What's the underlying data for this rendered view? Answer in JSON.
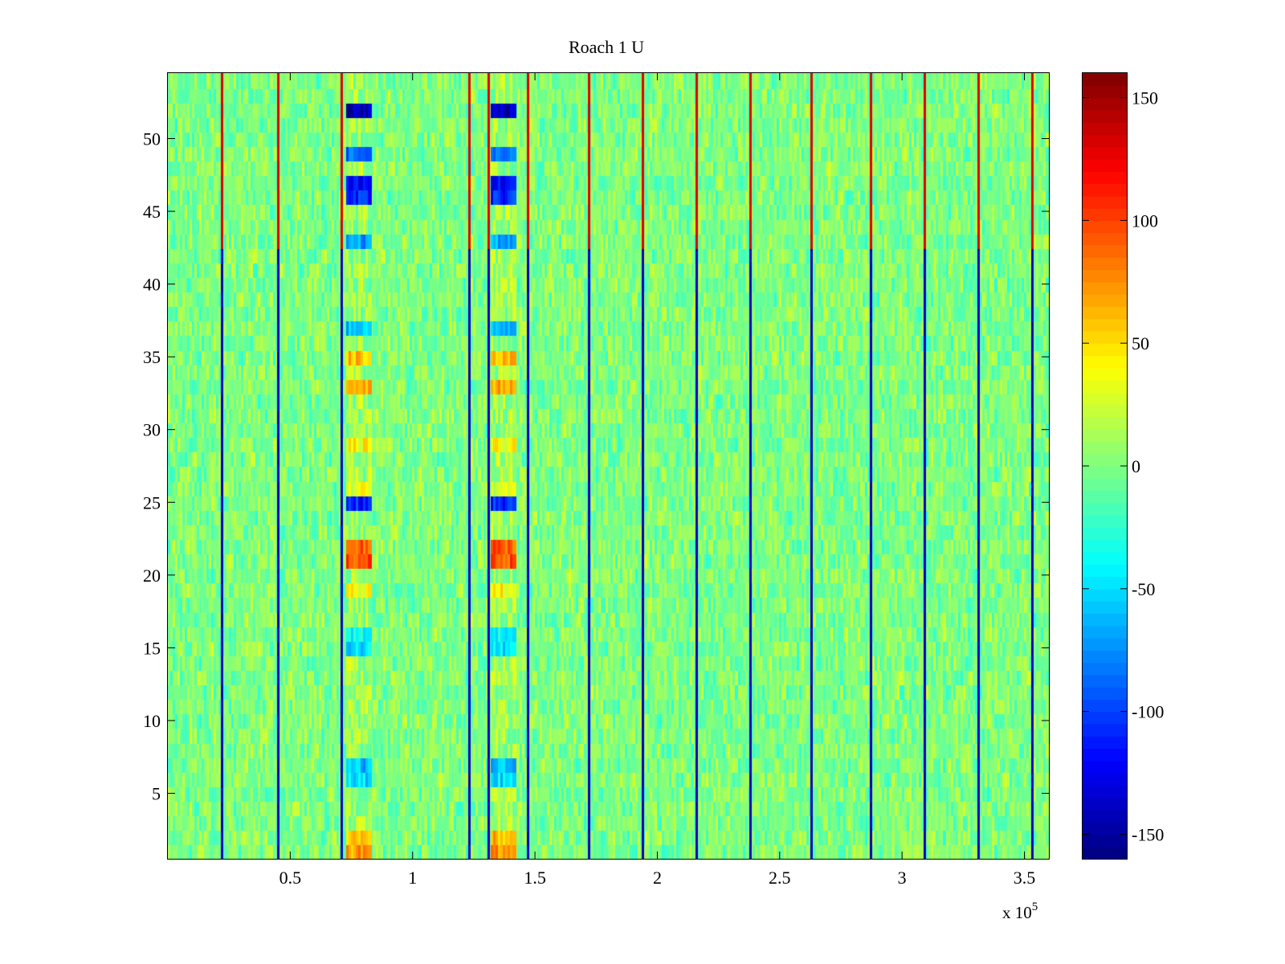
{
  "chart_data": {
    "type": "heatmap",
    "title": "Roach 1 U",
    "xlabel": "",
    "ylabel": "",
    "x_exponent_label": "x 10",
    "x_exponent_power": "5",
    "xlim": [
      0,
      3.6
    ],
    "ylim": [
      0.5,
      54.5
    ],
    "x_ticks": [
      0.5,
      1,
      1.5,
      2,
      2.5,
      3,
      3.5
    ],
    "x_tick_labels": [
      "0.5",
      "1",
      "1.5",
      "2",
      "2.5",
      "3",
      "3.5"
    ],
    "y_ticks": [
      5,
      10,
      15,
      20,
      25,
      30,
      35,
      40,
      45,
      50
    ],
    "y_tick_labels": [
      "5",
      "10",
      "15",
      "20",
      "25",
      "30",
      "35",
      "40",
      "45",
      "50"
    ],
    "rows": 54,
    "columns": 360,
    "background_value_range": [
      -30,
      30
    ],
    "colorbar": {
      "colormap": "jet",
      "clim": [
        -160,
        160
      ],
      "ticks": [
        150,
        100,
        50,
        0,
        -50,
        -100,
        -150
      ],
      "tick_labels": [
        "150",
        "100",
        "50",
        "0",
        "-50",
        "-100",
        "-150"
      ]
    },
    "spike_columns_x": [
      0.22,
      0.45,
      0.71,
      1.23,
      1.31,
      1.47,
      1.72,
      1.94,
      2.16,
      2.38,
      2.63,
      2.87,
      3.09,
      3.31,
      3.53
    ],
    "spike_values": {
      "upper_rows": 130,
      "lower_rows": -140
    },
    "stimulus_bands": [
      {
        "x_start": 0.73,
        "x_end": 0.83
      },
      {
        "x_start": 1.32,
        "x_end": 1.42
      }
    ],
    "band_row_values": {
      "52": -140,
      "49": -90,
      "47": -120,
      "46": -110,
      "43": -70,
      "37": -60,
      "35": 60,
      "33": 70,
      "29": 40,
      "26": 30,
      "25": -110,
      "22": 90,
      "21": 95,
      "19": 40,
      "16": -40,
      "15": -50,
      "7": -60,
      "6": -50,
      "2": 60,
      "1": 70
    }
  }
}
